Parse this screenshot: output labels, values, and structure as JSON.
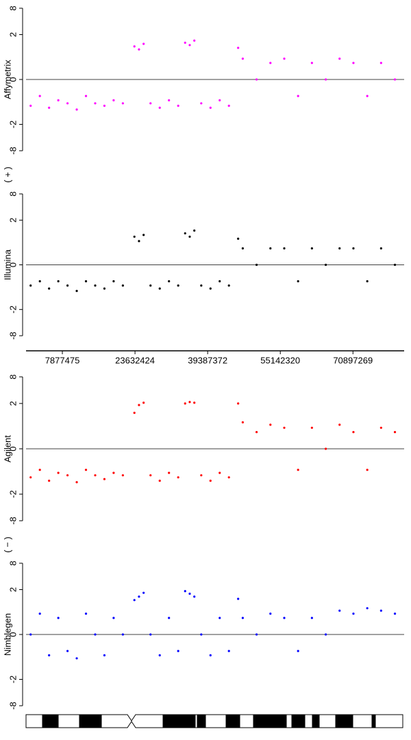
{
  "chart_data": [
    {
      "type": "scatter",
      "ylabel": "Affymetrix",
      "annotation": "( + )",
      "color": "#ff00ff",
      "yscale": "cbrt",
      "ylim": [
        -8,
        8
      ],
      "yticks": [
        -8,
        -2,
        0,
        2,
        8
      ],
      "hline": 0,
      "xlim": [
        0,
        82000000
      ],
      "x": [
        1000000,
        3000000,
        5000000,
        7000000,
        9000000,
        11000000,
        13000000,
        15000000,
        17000000,
        19000000,
        21000000,
        23500000,
        24500000,
        25500000,
        27000000,
        29000000,
        31000000,
        33000000,
        34500000,
        35500000,
        36500000,
        38000000,
        40000000,
        42000000,
        44000000,
        46000000,
        47000000,
        50000000,
        53000000,
        56000000,
        59000000,
        62000000,
        65000000,
        68000000,
        71000000,
        74000000,
        77000000,
        80000000
      ],
      "values": [
        -0.4,
        -0.1,
        -0.5,
        -0.2,
        -0.3,
        -0.6,
        -0.1,
        -0.3,
        -0.4,
        -0.2,
        -0.3,
        0.8,
        0.6,
        1.0,
        -0.3,
        -0.5,
        -0.2,
        -0.4,
        1.1,
        0.9,
        1.3,
        -0.3,
        -0.5,
        -0.2,
        -0.4,
        0.7,
        0.2,
        0.0,
        0.1,
        0.2,
        -0.1,
        0.1,
        0.0,
        0.2,
        0.1,
        -0.1,
        0.1,
        0.0
      ]
    },
    {
      "type": "scatter",
      "ylabel": "Illumina",
      "color": "#000000",
      "yscale": "cbrt",
      "ylim": [
        -8,
        8
      ],
      "yticks": [
        -8,
        -2,
        0,
        2,
        8
      ],
      "hline": 0,
      "xlim": [
        0,
        82000000
      ],
      "xticks": [
        7877475,
        23632424,
        39387372,
        55142320,
        70897269
      ],
      "x": [
        1000000,
        3000000,
        5000000,
        7000000,
        9000000,
        11000000,
        13000000,
        15000000,
        17000000,
        19000000,
        21000000,
        23500000,
        24500000,
        25500000,
        27000000,
        29000000,
        31000000,
        33000000,
        34500000,
        35500000,
        36500000,
        38000000,
        40000000,
        42000000,
        44000000,
        46000000,
        47000000,
        50000000,
        53000000,
        56000000,
        59000000,
        62000000,
        65000000,
        68000000,
        71000000,
        74000000,
        77000000,
        80000000
      ],
      "values": [
        -0.2,
        -0.1,
        -0.3,
        -0.1,
        -0.2,
        -0.4,
        -0.1,
        -0.2,
        -0.3,
        -0.1,
        -0.2,
        0.5,
        0.3,
        0.6,
        -0.2,
        -0.3,
        -0.1,
        -0.2,
        0.7,
        0.5,
        0.9,
        -0.2,
        -0.3,
        -0.1,
        -0.2,
        0.4,
        0.1,
        0.0,
        0.1,
        0.1,
        -0.1,
        0.1,
        0.0,
        0.1,
        0.1,
        -0.1,
        0.1,
        0.0
      ]
    },
    {
      "type": "scatter",
      "ylabel": "Agilent",
      "annotation": "( − )",
      "color": "#ff0000",
      "yscale": "cbrt",
      "ylim": [
        -8,
        8
      ],
      "yticks": [
        -8,
        -2,
        0,
        2,
        8
      ],
      "hline": 0,
      "xlim": [
        0,
        82000000
      ],
      "x": [
        1000000,
        3000000,
        5000000,
        7000000,
        9000000,
        11000000,
        13000000,
        15000000,
        17000000,
        19000000,
        21000000,
        23500000,
        24500000,
        25500000,
        27000000,
        29000000,
        31000000,
        33000000,
        34500000,
        35500000,
        36500000,
        38000000,
        40000000,
        42000000,
        44000000,
        46000000,
        47000000,
        50000000,
        53000000,
        56000000,
        59000000,
        62000000,
        65000000,
        68000000,
        71000000,
        74000000,
        77000000,
        80000000
      ],
      "values": [
        -0.5,
        -0.2,
        -0.7,
        -0.3,
        -0.4,
        -0.8,
        -0.2,
        -0.4,
        -0.6,
        -0.3,
        -0.4,
        1.0,
        1.8,
        2.1,
        -0.4,
        -0.7,
        -0.3,
        -0.5,
        2.0,
        2.2,
        2.1,
        -0.4,
        -0.7,
        -0.3,
        -0.5,
        2.0,
        0.4,
        0.1,
        0.3,
        0.2,
        -0.2,
        0.2,
        0.0,
        0.3,
        0.1,
        -0.2,
        0.2,
        0.1
      ]
    },
    {
      "type": "scatter",
      "ylabel": "Nimblegen",
      "color": "#0000ff",
      "yscale": "cbrt",
      "ylim": [
        -8,
        8
      ],
      "yticks": [
        -8,
        -2,
        0,
        2,
        8
      ],
      "hline": 0,
      "xlim": [
        0,
        82000000
      ],
      "x": [
        1000000,
        3000000,
        5000000,
        7000000,
        9000000,
        11000000,
        13000000,
        15000000,
        17000000,
        19000000,
        21000000,
        23500000,
        24500000,
        25500000,
        27000000,
        29000000,
        31000000,
        33000000,
        34500000,
        35500000,
        36500000,
        38000000,
        40000000,
        42000000,
        44000000,
        46000000,
        47000000,
        50000000,
        53000000,
        56000000,
        59000000,
        62000000,
        65000000,
        68000000,
        71000000,
        74000000,
        77000000,
        80000000
      ],
      "values": [
        0.0,
        0.2,
        -0.2,
        0.1,
        -0.1,
        -0.3,
        0.2,
        0.0,
        -0.2,
        0.1,
        0.0,
        0.9,
        1.2,
        1.6,
        0.0,
        -0.2,
        0.1,
        -0.1,
        1.8,
        1.5,
        1.2,
        0.0,
        -0.2,
        0.1,
        -0.1,
        1.0,
        0.1,
        0.0,
        0.2,
        0.1,
        -0.1,
        0.1,
        0.0,
        0.3,
        0.2,
        0.4,
        0.3,
        0.2
      ]
    }
  ]
}
